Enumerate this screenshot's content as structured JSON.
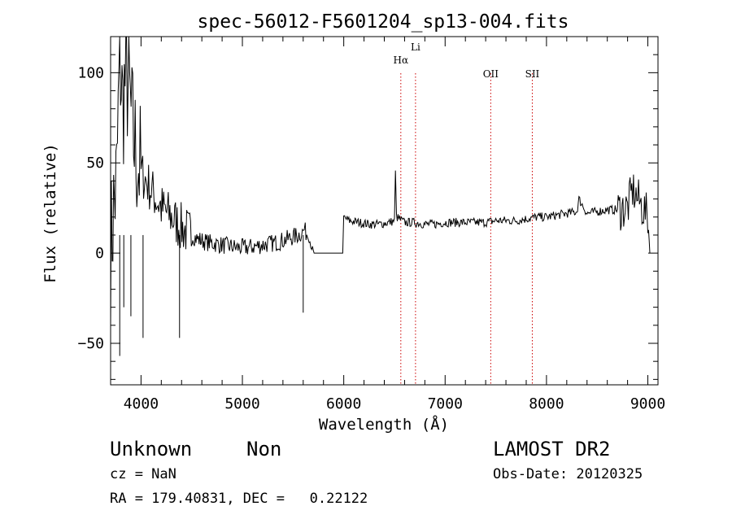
{
  "chart_data": {
    "type": "line",
    "title": "spec-56012-F5601204_sp13-004.fits",
    "xlabel": "Wavelength (Å)",
    "ylabel": "Flux (relative)",
    "xlim": [
      3700,
      9100
    ],
    "ylim": [
      -73,
      120
    ],
    "xticks": [
      4000,
      5000,
      6000,
      7000,
      8000,
      9000
    ],
    "yticks": [
      -50,
      0,
      50,
      100
    ],
    "line_color": "#000000",
    "marker_color": "#cc0000",
    "series": [
      {
        "name": "flux",
        "x": [
          3700,
          3730,
          3760,
          3790,
          3820,
          3850,
          3880,
          3910,
          3950,
          4000,
          4050,
          4100,
          4150,
          4200,
          4300,
          4380,
          4450,
          4550,
          4650,
          4750,
          4850,
          4950,
          5050,
          5150,
          5250,
          5350,
          5450,
          5550,
          5600,
          5610,
          5620,
          5650,
          5700,
          5800,
          5900,
          5990,
          6000,
          6050,
          6150,
          6250,
          6350,
          6450,
          6500,
          6510,
          6520,
          6600,
          6700,
          6800,
          6900,
          7000,
          7100,
          7200,
          7300,
          7400,
          7500,
          7600,
          7700,
          7800,
          7900,
          8000,
          8100,
          8200,
          8300,
          8320,
          8400,
          8500,
          8600,
          8700,
          8800,
          8850,
          8900,
          8950,
          9000,
          9020
        ],
        "y": [
          0,
          25,
          40,
          110,
          80,
          100,
          90,
          70,
          55,
          45,
          40,
          35,
          30,
          25,
          20,
          15,
          12,
          8,
          6,
          5,
          4,
          3,
          3,
          4,
          5,
          6,
          8,
          10,
          12,
          13,
          12,
          10,
          0,
          0,
          0,
          0,
          20,
          18,
          17,
          16,
          16,
          17,
          18,
          45,
          20,
          17,
          17,
          16,
          16,
          17,
          17,
          17,
          17,
          17,
          18,
          18,
          18,
          19,
          20,
          20,
          21,
          22,
          23,
          30,
          22,
          23,
          24,
          24,
          25,
          35,
          30,
          25,
          20,
          0
        ]
      }
    ],
    "spikes": [
      {
        "x": 3790,
        "y": -57
      },
      {
        "x": 3830,
        "y": -30
      },
      {
        "x": 3900,
        "y": -35
      },
      {
        "x": 4020,
        "y": -47
      },
      {
        "x": 4380,
        "y": -47
      },
      {
        "x": 5600,
        "y": -33
      }
    ],
    "markers": [
      {
        "label": "Hα",
        "x": 6563
      },
      {
        "label": "Li",
        "x": 6708
      },
      {
        "label": "OII",
        "x": 7450
      },
      {
        "label": "SII",
        "x": 7860
      }
    ]
  },
  "footer": {
    "object_class": "Unknown",
    "subclass": "Non",
    "survey": "LAMOST DR2",
    "cz": "cz = NaN",
    "obs_date": "Obs-Date: 20120325",
    "coords": "RA = 179.40831, DEC =   0.22122"
  }
}
